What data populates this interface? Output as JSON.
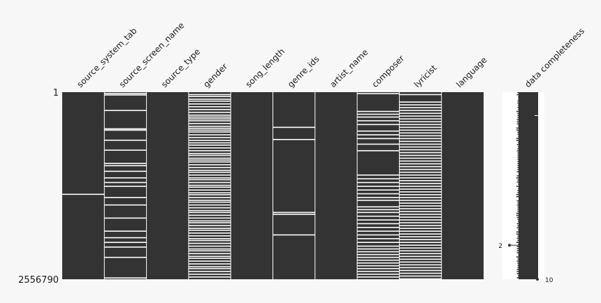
{
  "chart_data": {
    "type": "heatmap",
    "title": "",
    "columns": [
      {
        "name": "source_system_tab",
        "missing_rows": [
          0.543
        ]
      },
      {
        "name": "source_screen_name",
        "missing_rows": [
          0.004,
          0.012,
          0.095,
          0.193,
          0.2,
          0.254,
          0.307,
          0.378,
          0.39,
          0.42,
          0.455,
          0.48,
          0.5,
          0.56,
          0.6,
          0.67,
          0.74,
          0.775,
          0.8,
          0.825,
          0.88,
          0.99
        ]
      },
      {
        "name": "source_type",
        "missing_rows": []
      },
      {
        "name": "gender",
        "missing_rows": [
          0.01,
          0.02,
          0.035,
          0.045,
          0.06,
          0.075,
          0.09,
          0.105,
          0.12,
          0.13,
          0.14,
          0.15,
          0.165,
          0.18,
          0.19,
          0.2,
          0.21,
          0.225,
          0.24,
          0.255,
          0.268,
          0.28,
          0.295,
          0.31,
          0.325,
          0.335,
          0.35,
          0.36,
          0.37,
          0.385,
          0.4,
          0.415,
          0.425,
          0.44,
          0.455,
          0.465,
          0.48,
          0.495,
          0.505,
          0.52,
          0.535,
          0.545,
          0.56,
          0.575,
          0.585,
          0.6,
          0.615,
          0.63,
          0.64,
          0.655,
          0.67,
          0.685,
          0.695,
          0.71,
          0.725,
          0.735,
          0.75,
          0.765,
          0.78,
          0.79,
          0.805,
          0.82,
          0.835,
          0.845,
          0.86,
          0.875,
          0.885,
          0.9,
          0.915,
          0.93,
          0.94,
          0.955,
          0.97,
          0.985
        ]
      },
      {
        "name": "song_length",
        "missing_rows": []
      },
      {
        "name": "genre_ids",
        "missing_rows": [
          0.185,
          0.25,
          0.64,
          0.65,
          0.76
        ]
      },
      {
        "name": "artist_name",
        "missing_rows": []
      },
      {
        "name": "composer",
        "missing_rows": [
          0.005,
          0.1,
          0.115,
          0.13,
          0.15,
          0.17,
          0.205,
          0.225,
          0.245,
          0.275,
          0.31,
          0.44,
          0.46,
          0.48,
          0.5,
          0.52,
          0.54,
          0.56,
          0.575,
          0.61,
          0.625,
          0.64,
          0.66,
          0.68,
          0.7,
          0.72,
          0.74,
          0.76,
          0.78,
          0.8,
          0.82,
          0.835,
          0.85,
          0.865,
          0.88,
          0.895,
          0.91,
          0.925,
          0.94,
          0.955,
          0.97,
          0.985
        ]
      },
      {
        "name": "lyricist",
        "missing_rows": [
          0.01,
          0.05,
          0.065,
          0.08,
          0.095,
          0.11,
          0.125,
          0.14,
          0.155,
          0.17,
          0.185,
          0.2,
          0.215,
          0.23,
          0.245,
          0.26,
          0.275,
          0.29,
          0.305,
          0.32,
          0.335,
          0.35,
          0.365,
          0.38,
          0.395,
          0.41,
          0.425,
          0.44,
          0.455,
          0.47,
          0.485,
          0.5,
          0.515,
          0.53,
          0.545,
          0.56,
          0.575,
          0.59,
          0.605,
          0.62,
          0.635,
          0.65,
          0.665,
          0.68,
          0.695,
          0.71,
          0.725,
          0.74,
          0.755,
          0.77,
          0.785,
          0.8,
          0.815,
          0.83,
          0.845,
          0.86,
          0.875,
          0.89,
          0.905,
          0.92,
          0.935,
          0.95,
          0.965,
          0.98,
          0.995
        ]
      },
      {
        "name": "language",
        "missing_rows": []
      }
    ],
    "y_ticks": [
      "1",
      "2556790"
    ],
    "sparkline": {
      "title": "data completeness",
      "min_label": "2",
      "max_label": "10",
      "min_at_row": 0.818,
      "max_at_row": 0.125
    }
  },
  "colors": {
    "present": "#333333",
    "missing": "#ffffff",
    "background": "#f7f7f7",
    "spark_panel": "#ffffff"
  }
}
